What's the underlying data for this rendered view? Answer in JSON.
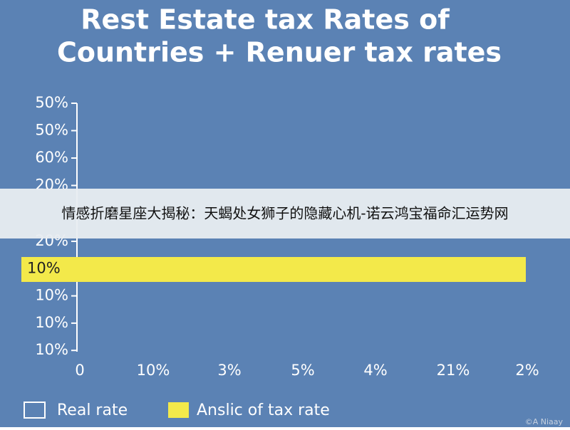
{
  "title_lines": [
    "Rest Estate tax Rates of",
    "Countries + Renuer tax rates"
  ],
  "y_axis_labels": [
    "50%",
    "50%",
    "60%",
    "20%",
    "20%",
    "10%",
    "10%",
    "10%",
    "10%"
  ],
  "x_axis_labels": [
    "0",
    "10%",
    "3%",
    "5%",
    "4%",
    "21%",
    "2%"
  ],
  "legend": [
    {
      "label": "Real rate",
      "color": "#5b82b4"
    },
    {
      "label": "Anslic of tax rate",
      "color": "#f3e94a"
    }
  ],
  "banner": "情感折磨星座大揭秘：天蝎处女狮子的隐藏心机-诺云鸿宝福命汇运势网",
  "watermark": "©A Niaay"
}
